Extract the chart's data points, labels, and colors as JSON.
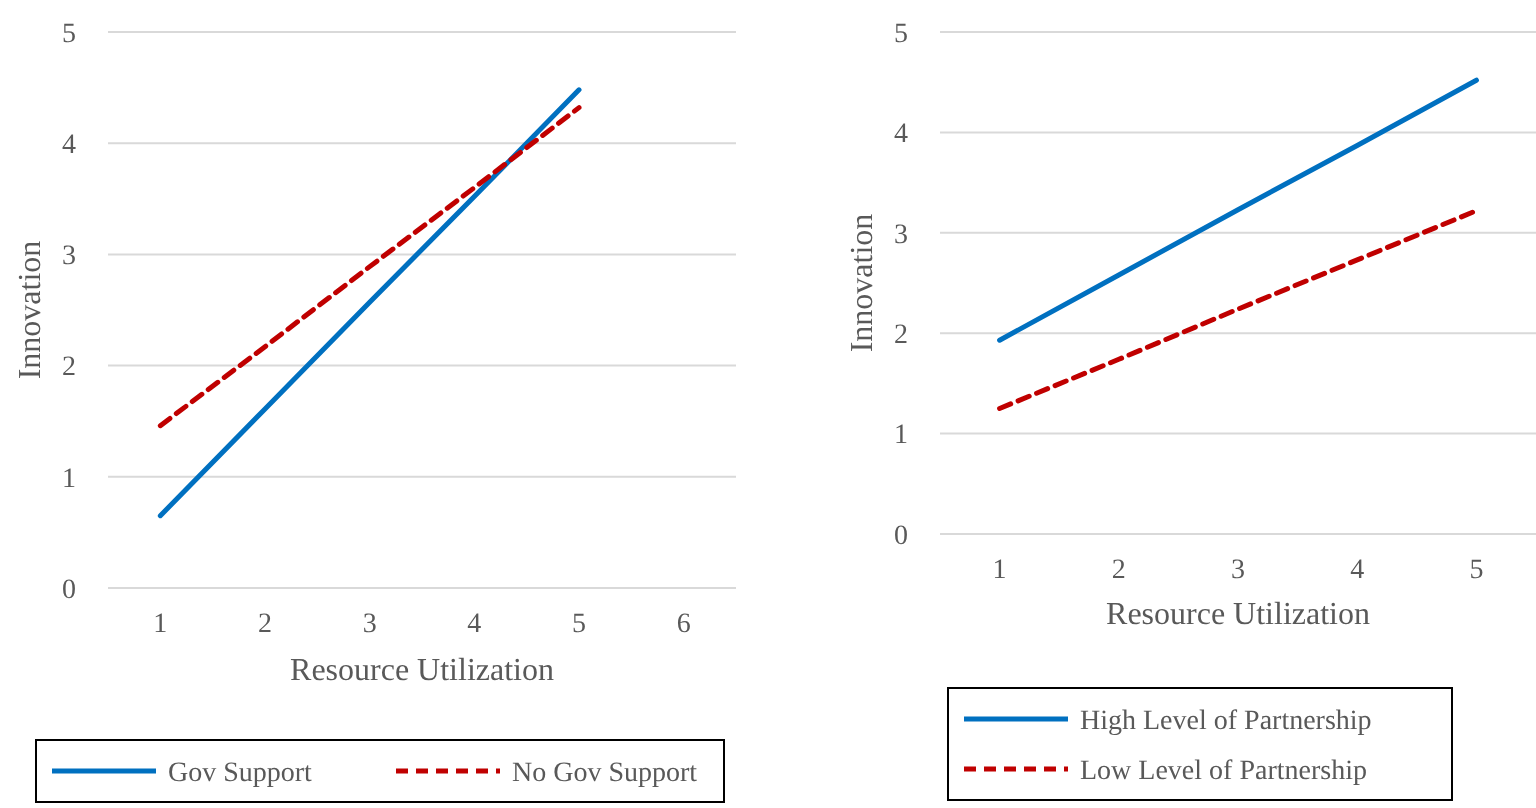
{
  "chart_data": [
    {
      "type": "line",
      "xlabel": "Resource Utilization",
      "ylabel": "Innovation",
      "categories": [
        "1",
        "2",
        "3",
        "4",
        "5",
        "6"
      ],
      "ylim": [
        0,
        5
      ],
      "yticks": [
        0,
        1,
        2,
        3,
        4,
        5
      ],
      "grid": "y",
      "legend": "bottom",
      "marker": "none",
      "series": [
        {
          "name": "Gov Support",
          "color": "#0070c0",
          "line_style": "solid",
          "values": [
            0.65,
            1.61,
            2.57,
            3.52,
            4.48,
            null
          ]
        },
        {
          "name": "No Gov Support",
          "color": "#c00000",
          "line_style": "dashed",
          "values": [
            1.46,
            2.17,
            2.89,
            3.6,
            4.32,
            null
          ]
        }
      ]
    },
    {
      "type": "line",
      "xlabel": "Resource Utilization",
      "ylabel": "Innovation",
      "categories": [
        "1",
        "2",
        "3",
        "4",
        "5"
      ],
      "ylim": [
        0,
        5
      ],
      "yticks": [
        0,
        1,
        2,
        3,
        4,
        5
      ],
      "grid": "y",
      "legend": "bottom",
      "marker": "none",
      "series": [
        {
          "name": "High Level of Partnership",
          "color": "#0070c0",
          "line_style": "solid",
          "values": [
            1.93,
            2.58,
            3.23,
            3.87,
            4.52
          ]
        },
        {
          "name": "Low Level of Partnership",
          "color": "#c00000",
          "line_style": "dashed",
          "values": [
            1.25,
            1.74,
            2.24,
            2.73,
            3.22
          ]
        }
      ]
    }
  ]
}
